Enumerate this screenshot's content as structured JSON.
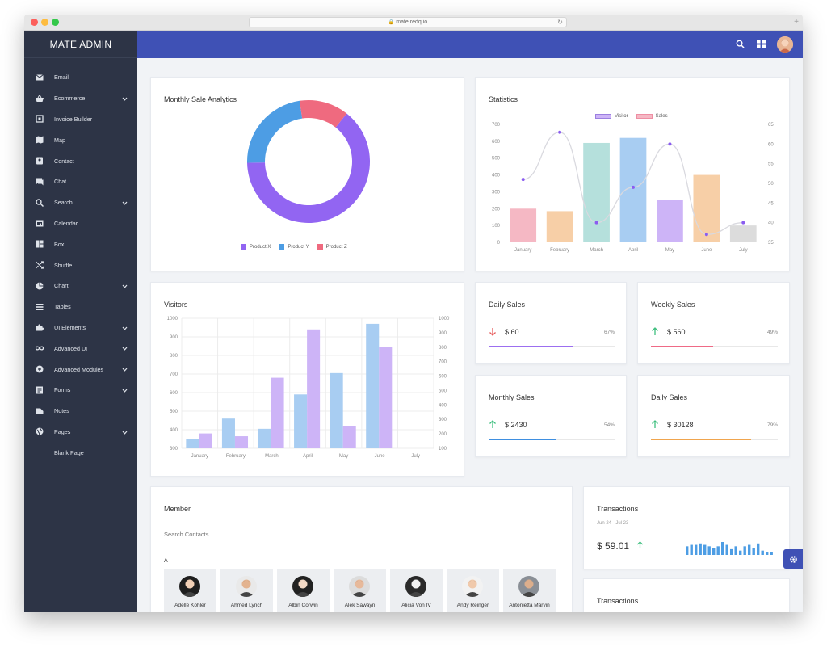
{
  "browser": {
    "url": "mate.redq.io",
    "lock": "🔒"
  },
  "colors": {
    "sidebar": "#2d3446",
    "topbar": "#3f51b5",
    "background": "#f1f3f6"
  },
  "brand": "MATE ADMIN",
  "sidebar": {
    "items": [
      {
        "label": "Email",
        "icon": "mail-icon",
        "chevron": false
      },
      {
        "label": "Ecommerce",
        "icon": "basket-icon",
        "chevron": true
      },
      {
        "label": "Invoice Builder",
        "icon": "invoice-icon",
        "chevron": false
      },
      {
        "label": "Map",
        "icon": "map-icon",
        "chevron": false
      },
      {
        "label": "Contact",
        "icon": "contact-icon",
        "chevron": false
      },
      {
        "label": "Chat",
        "icon": "chat-icon",
        "chevron": false
      },
      {
        "label": "Search",
        "icon": "search-icon",
        "chevron": true
      },
      {
        "label": "Calendar",
        "icon": "calendar-icon",
        "chevron": false
      },
      {
        "label": "Box",
        "icon": "box-icon",
        "chevron": false
      },
      {
        "label": "Shuffle",
        "icon": "shuffle-icon",
        "chevron": false
      },
      {
        "label": "Chart",
        "icon": "pie-chart-icon",
        "chevron": true
      },
      {
        "label": "Tables",
        "icon": "table-icon",
        "chevron": false
      },
      {
        "label": "UI Elements",
        "icon": "puzzle-icon",
        "chevron": true
      },
      {
        "label": "Advanced UI",
        "icon": "infinity-icon",
        "chevron": true
      },
      {
        "label": "Advanced Modules",
        "icon": "module-icon",
        "chevron": true
      },
      {
        "label": "Forms",
        "icon": "form-icon",
        "chevron": true
      },
      {
        "label": "Notes",
        "icon": "notes-icon",
        "chevron": false
      },
      {
        "label": "Pages",
        "icon": "globe-icon",
        "chevron": true
      },
      {
        "label": "Blank Page",
        "icon": "",
        "chevron": false
      }
    ]
  },
  "topbar": {
    "icons": [
      "search-icon",
      "apps-grid-icon",
      "user-avatar"
    ]
  },
  "monthly_sale": {
    "title": "Monthly Sale Analytics",
    "legend": [
      "Product X",
      "Product Y",
      "Product Z"
    ]
  },
  "statistics": {
    "title": "Statistics",
    "legend": [
      "Visitor",
      "Sales"
    ]
  },
  "visitors": {
    "title": "Visitors"
  },
  "mini_cards": [
    {
      "title": "Daily Sales",
      "amount": "$ 60",
      "pct": "67%",
      "trend": "down",
      "fraction": 0.67,
      "color": "#9c6ff0"
    },
    {
      "title": "Weekly Sales",
      "amount": "$ 560",
      "pct": "49%",
      "trend": "up",
      "fraction": 0.49,
      "color": "#ef6a86"
    },
    {
      "title": "Monthly Sales",
      "amount": "$ 2430",
      "pct": "54%",
      "trend": "up",
      "fraction": 0.54,
      "color": "#3f8fe0"
    },
    {
      "title": "Daily Sales",
      "amount": "$ 30128",
      "pct": "79%",
      "trend": "up",
      "fraction": 0.79,
      "color": "#f0a54e"
    }
  ],
  "member": {
    "title": "Member",
    "search_placeholder": "Search Contacts",
    "group_letter": "A",
    "contacts": [
      "Adelle Kohler",
      "Ahmed Lynch",
      "Albin Corwin",
      "Alek Sawayn",
      "Alicia Von IV",
      "Andy Reinger",
      "Antonietta Marvin"
    ]
  },
  "transactions": {
    "title": "Transactions",
    "date_range": "Jun 24 - Jul 23",
    "amount": "$ 59.01",
    "title2": "Transactions"
  },
  "chart_data": [
    {
      "type": "pie",
      "title": "Monthly Sale Analytics",
      "donut": true,
      "categories": [
        "Product X",
        "Product Y",
        "Product Z"
      ],
      "values": [
        64,
        23,
        13
      ],
      "colors": [
        "#9265f2",
        "#4d9de4",
        "#ef6a7f"
      ]
    },
    {
      "type": "bar",
      "title": "Statistics",
      "categories": [
        "January",
        "February",
        "March",
        "April",
        "May",
        "June",
        "July"
      ],
      "series": [
        {
          "name": "Visitor",
          "kind": "line",
          "axis": "right",
          "values": [
            51,
            63,
            40,
            49,
            60,
            37,
            40
          ]
        },
        {
          "name": "Sales",
          "kind": "bar",
          "axis": "left",
          "values": [
            200,
            185,
            590,
            620,
            250,
            400,
            100
          ],
          "colors": [
            "#f5b8c4",
            "#f7cfa7",
            "#b5e0dc",
            "#a8cdf2",
            "#cdb4f7",
            "#f7cfa7",
            "#dcdcdc"
          ]
        }
      ],
      "ylim_left": [
        0,
        700
      ],
      "yticks_left": [
        0,
        100,
        200,
        300,
        400,
        500,
        600,
        700
      ],
      "ylim_right": [
        35,
        65
      ],
      "yticks_right": [
        35,
        40,
        45,
        50,
        55,
        60,
        65
      ],
      "legend_position": "top-center"
    },
    {
      "type": "bar",
      "title": "Visitors",
      "categories": [
        "January",
        "February",
        "March",
        "April",
        "May",
        "June",
        "July"
      ],
      "series": [
        {
          "name": "",
          "color": "#a8cdf2",
          "axis": "left",
          "values": [
            350,
            460,
            405,
            590,
            705,
            970,
            null
          ]
        },
        {
          "name": "",
          "color": "#cdb4f7",
          "axis": "left",
          "values": [
            380,
            365,
            680,
            940,
            420,
            845,
            null
          ]
        }
      ],
      "ylim_left": [
        300,
        1000
      ],
      "yticks_left": [
        300,
        400,
        500,
        600,
        700,
        800,
        900,
        1000
      ],
      "ylim_right": [
        100,
        1000
      ],
      "yticks_right": [
        100,
        200,
        300,
        400,
        500,
        600,
        700,
        800,
        900,
        1000
      ],
      "grid": true
    },
    {
      "type": "bar",
      "title": "Transactions",
      "values": [
        6,
        7,
        7,
        8,
        7,
        6,
        5,
        6,
        9,
        7,
        4,
        6,
        3,
        6,
        7,
        5,
        8,
        3,
        2,
        2
      ],
      "color": "#4d9de4"
    }
  ]
}
